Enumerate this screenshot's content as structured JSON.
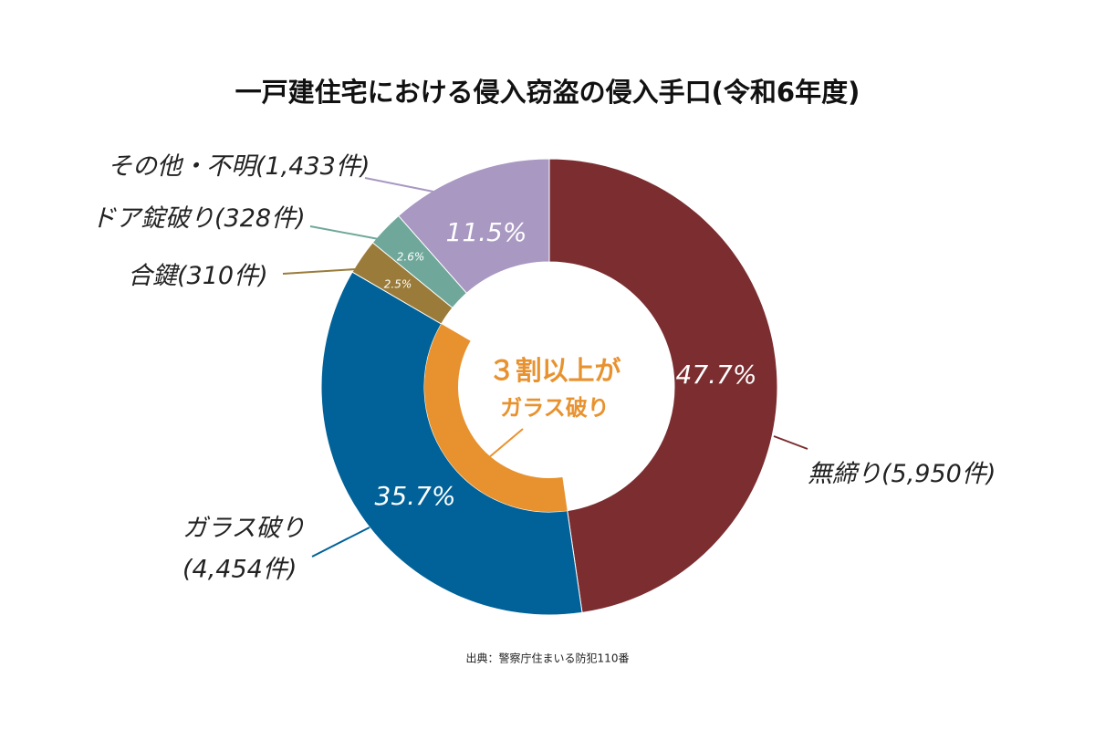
{
  "chart_data": {
    "type": "donut",
    "title": "一戸建住宅における侵入窃盗の侵入手口(令和6年度)",
    "categories": [
      "無締り",
      "ガラス破り",
      "合鍵",
      "ドア錠破り",
      "その他・不明"
    ],
    "count_labels": [
      "(5,950件)",
      "(4,454件)",
      "(310件)",
      "(328件)",
      "(1,433件)"
    ],
    "values": [
      47.7,
      35.7,
      2.5,
      2.6,
      11.5
    ],
    "value_labels": [
      "47.7%",
      "35.7%",
      "2.5%",
      "2.6%",
      "11.5%"
    ],
    "colors": [
      "#7b2d30",
      "#006298",
      "#9a7b3a",
      "#6fa89a",
      "#a898c2"
    ],
    "annotation": [
      "３割以上が",
      "ガラス破り"
    ],
    "annotation_color": "#e8922f",
    "source": "出典：警察庁住まいる防犯110番"
  }
}
